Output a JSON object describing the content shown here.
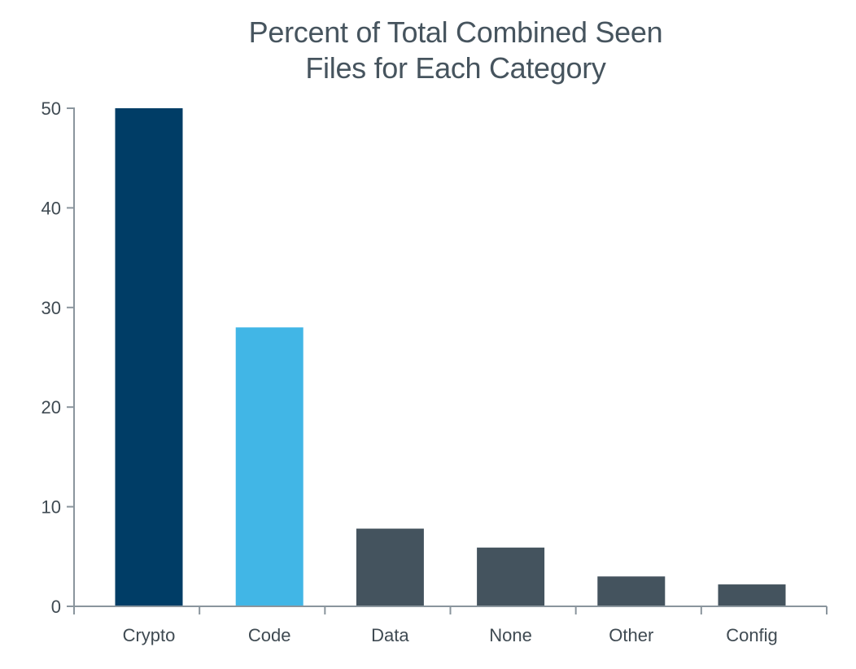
{
  "chart_data": {
    "type": "bar",
    "title_lines": [
      "Percent of Total Combined Seen",
      "Files for Each Category"
    ],
    "title": "Percent of Total Combined Seen Files for Each Category",
    "xlabel": "",
    "ylabel": "",
    "categories": [
      "Crypto",
      "Code",
      "Data",
      "None",
      "Other",
      "Config"
    ],
    "values": [
      50,
      28,
      7.8,
      5.9,
      3,
      2.2
    ],
    "bar_colors": [
      "#003d66",
      "#41b6e6",
      "#44535e",
      "#44535e",
      "#44535e",
      "#44535e"
    ],
    "ylim": [
      0,
      50
    ],
    "yticks": [
      0,
      10,
      20,
      30,
      40,
      50
    ],
    "grid": false,
    "legend": "none",
    "axis_color": "#8a959d"
  }
}
